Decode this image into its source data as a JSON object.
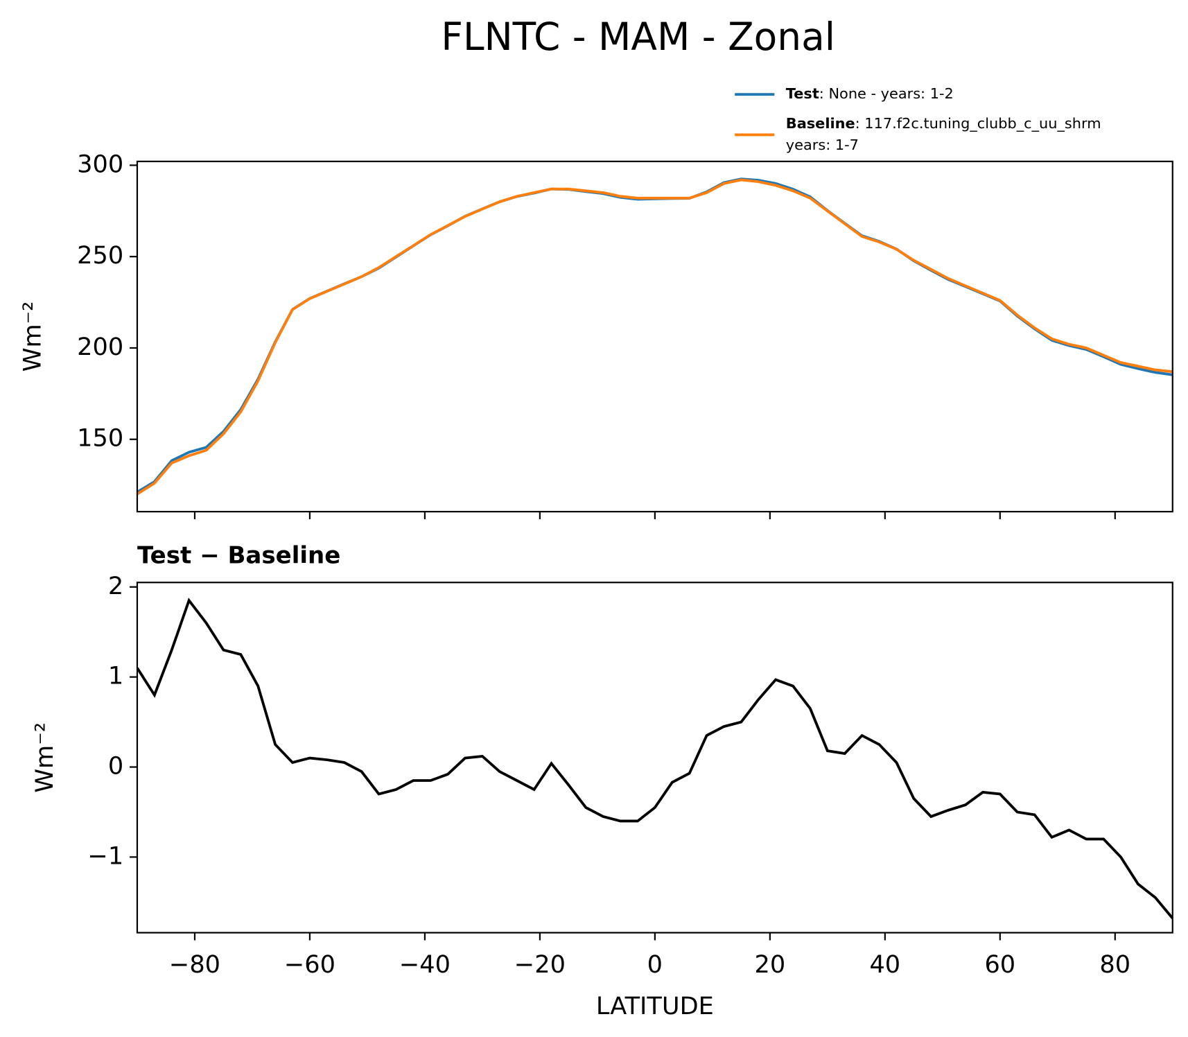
{
  "chart_data": [
    {
      "type": "line",
      "title": "FLNTC - MAM - Zonal",
      "ylabel": "Wm⁻²",
      "legend": "upper right",
      "x": [
        -90,
        -87,
        -84,
        -81,
        -78,
        -75,
        -72,
        -69,
        -66,
        -63,
        -60,
        -57,
        -54,
        -51,
        -48,
        -45,
        -42,
        -39,
        -36,
        -33,
        -30,
        -27,
        -24,
        -21,
        -18,
        -15,
        -12,
        -9,
        -6,
        -3,
        0,
        3,
        6,
        9,
        12,
        15,
        18,
        21,
        24,
        27,
        30,
        33,
        36,
        39,
        42,
        45,
        48,
        51,
        54,
        57,
        60,
        63,
        66,
        69,
        72,
        75,
        78,
        81,
        84,
        87,
        90
      ],
      "series": [
        {
          "name": "Test",
          "description": [
            ": None - years: 1-2"
          ],
          "color": "#1f77b4",
          "values": [
            121.1,
            126.8,
            138.3,
            142.9,
            145.6,
            154.3,
            166.3,
            182.9,
            203.3,
            221.1,
            227.1,
            231.1,
            235.1,
            239.0,
            243.7,
            249.8,
            255.9,
            261.9,
            266.9,
            272.1,
            276.1,
            280.0,
            282.9,
            284.8,
            287.0,
            286.8,
            285.6,
            284.5,
            282.4,
            281.4,
            281.6,
            281.8,
            281.9,
            285.4,
            290.5,
            292.5,
            291.8,
            290.0,
            286.9,
            282.7,
            275.2,
            268.2,
            261.4,
            258.3,
            254.1,
            247.7,
            242.5,
            237.5,
            233.6,
            229.7,
            225.7,
            217.5,
            210.5,
            204.2,
            201.3,
            199.2,
            195.2,
            191.0,
            188.7,
            186.6,
            185.3
          ]
        },
        {
          "name": "Baseline",
          "description": [
            ": 117.f2c.tuning_clubb_c_uu_shrm",
            "years: 1-7"
          ],
          "color": "#ff7f0e",
          "values": [
            120,
            126,
            137,
            141,
            144,
            153,
            165,
            182,
            203,
            221,
            227,
            231,
            235,
            239,
            244,
            250,
            256,
            262,
            267,
            272,
            276,
            280,
            283,
            285,
            287,
            287,
            286,
            285,
            283,
            282,
            282,
            282,
            282,
            285,
            290,
            292,
            291,
            289,
            286,
            282,
            275,
            268,
            261,
            258,
            254,
            248,
            243,
            238,
            234,
            230,
            226,
            218,
            211,
            205,
            202,
            200,
            196,
            192,
            190,
            188,
            187
          ]
        }
      ],
      "xlim": [
        -90,
        90
      ],
      "xticks": [
        -80,
        -60,
        -40,
        -20,
        0,
        20,
        40,
        60,
        80
      ],
      "ylim": [
        110.4,
        302.1
      ],
      "yticks": [
        150,
        200,
        250,
        300
      ]
    },
    {
      "type": "line",
      "title": "Test − Baseline",
      "ylabel": "Wm⁻²",
      "xlabel": "LATITUDE",
      "x": [
        -90,
        -87,
        -84,
        -81,
        -78,
        -75,
        -72,
        -69,
        -66,
        -63,
        -60,
        -57,
        -54,
        -51,
        -48,
        -45,
        -42,
        -39,
        -36,
        -33,
        -30,
        -27,
        -24,
        -21,
        -18,
        -15,
        -12,
        -9,
        -6,
        -3,
        0,
        3,
        6,
        9,
        12,
        15,
        18,
        21,
        24,
        27,
        30,
        33,
        36,
        39,
        42,
        45,
        48,
        51,
        54,
        57,
        60,
        63,
        66,
        69,
        72,
        75,
        78,
        81,
        84,
        87,
        90
      ],
      "series": [
        {
          "color": "#000000",
          "values": [
            1.1,
            0.8,
            1.3,
            1.85,
            1.6,
            1.3,
            1.25,
            0.9,
            0.25,
            0.05,
            0.1,
            0.08,
            0.05,
            -0.05,
            -0.3,
            -0.25,
            -0.15,
            -0.15,
            -0.08,
            0.1,
            0.12,
            -0.05,
            -0.15,
            -0.25,
            0.04,
            -0.2,
            -0.45,
            -0.55,
            -0.6,
            -0.6,
            -0.45,
            -0.17,
            -0.07,
            0.35,
            0.45,
            0.5,
            0.75,
            0.97,
            0.9,
            0.65,
            0.18,
            0.15,
            0.35,
            0.25,
            0.05,
            -0.35,
            -0.55,
            -0.48,
            -0.42,
            -0.28,
            -0.3,
            -0.5,
            -0.53,
            -0.78,
            -0.7,
            -0.8,
            -0.8,
            -1.0,
            -1.3,
            -1.45,
            -1.68
          ]
        }
      ],
      "xlim": [
        -90,
        90
      ],
      "xticks": [
        {
          "value": -80,
          "label": "−80"
        },
        {
          "value": -60,
          "label": "−60"
        },
        {
          "value": -40,
          "label": "−40"
        },
        {
          "value": -20,
          "label": "−20"
        },
        0,
        20,
        40,
        60,
        80
      ],
      "ylim": [
        -1.84,
        2.05
      ],
      "yticks": [
        {
          "value": -1,
          "label": "−1"
        },
        0,
        1,
        2
      ]
    }
  ]
}
